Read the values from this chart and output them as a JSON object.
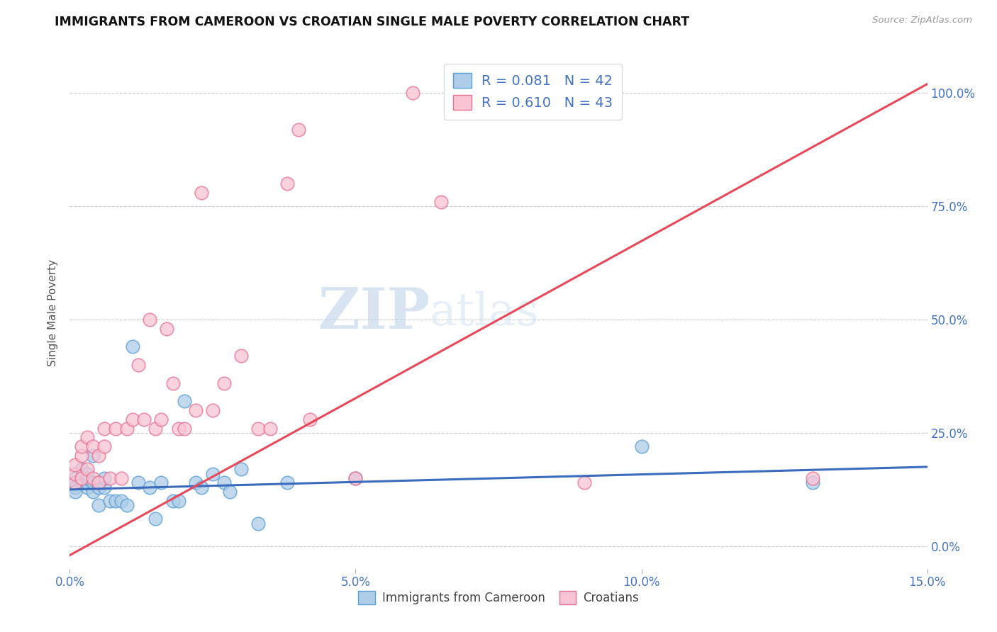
{
  "title": "IMMIGRANTS FROM CAMEROON VS CROATIAN SINGLE MALE POVERTY CORRELATION CHART",
  "source": "Source: ZipAtlas.com",
  "ylabel": "Single Male Poverty",
  "x_min": 0.0,
  "x_max": 0.15,
  "y_min": -0.05,
  "y_max": 1.08,
  "x_ticks": [
    0.0,
    0.05,
    0.1,
    0.15
  ],
  "x_tick_labels": [
    "0.0%",
    "5.0%",
    "10.0%",
    "15.0%"
  ],
  "y_ticks": [
    0.0,
    0.25,
    0.5,
    0.75,
    1.0
  ],
  "y_tick_labels": [
    "0.0%",
    "25.0%",
    "50.0%",
    "75.0%",
    "100.0%"
  ],
  "blue_color": "#92bde0",
  "pink_color": "#f4a8bf",
  "blue_face_color": "#aecde8",
  "pink_face_color": "#f9c4d4",
  "blue_edge_color": "#5b9fd4",
  "pink_edge_color": "#e87090",
  "blue_line_color": "#3a6bbc",
  "pink_line_color": "#e8485a",
  "watermark_zip": "ZIP",
  "watermark_atlas": "atlas",
  "blue_R": 0.081,
  "blue_N": 42,
  "pink_R": 0.61,
  "pink_N": 43,
  "blue_scatter_x": [
    0.001,
    0.001,
    0.001,
    0.001,
    0.002,
    0.002,
    0.002,
    0.003,
    0.003,
    0.003,
    0.003,
    0.004,
    0.004,
    0.004,
    0.005,
    0.005,
    0.005,
    0.006,
    0.006,
    0.007,
    0.008,
    0.009,
    0.01,
    0.011,
    0.012,
    0.014,
    0.015,
    0.016,
    0.018,
    0.019,
    0.02,
    0.022,
    0.023,
    0.025,
    0.027,
    0.028,
    0.03,
    0.033,
    0.038,
    0.05,
    0.1,
    0.13
  ],
  "blue_scatter_y": [
    0.14,
    0.15,
    0.13,
    0.12,
    0.14,
    0.15,
    0.17,
    0.13,
    0.14,
    0.15,
    0.16,
    0.12,
    0.14,
    0.2,
    0.13,
    0.14,
    0.09,
    0.13,
    0.15,
    0.1,
    0.1,
    0.1,
    0.09,
    0.44,
    0.14,
    0.13,
    0.06,
    0.14,
    0.1,
    0.1,
    0.32,
    0.14,
    0.13,
    0.16,
    0.14,
    0.12,
    0.17,
    0.05,
    0.14,
    0.15,
    0.22,
    0.14
  ],
  "pink_scatter_x": [
    0.001,
    0.001,
    0.001,
    0.002,
    0.002,
    0.002,
    0.003,
    0.003,
    0.004,
    0.004,
    0.005,
    0.005,
    0.006,
    0.006,
    0.007,
    0.008,
    0.009,
    0.01,
    0.011,
    0.012,
    0.013,
    0.014,
    0.015,
    0.016,
    0.017,
    0.018,
    0.019,
    0.02,
    0.022,
    0.023,
    0.025,
    0.027,
    0.03,
    0.033,
    0.035,
    0.038,
    0.04,
    0.042,
    0.05,
    0.06,
    0.065,
    0.09,
    0.13
  ],
  "pink_scatter_y": [
    0.14,
    0.16,
    0.18,
    0.15,
    0.2,
    0.22,
    0.17,
    0.24,
    0.15,
    0.22,
    0.14,
    0.2,
    0.22,
    0.26,
    0.15,
    0.26,
    0.15,
    0.26,
    0.28,
    0.4,
    0.28,
    0.5,
    0.26,
    0.28,
    0.48,
    0.36,
    0.26,
    0.26,
    0.3,
    0.78,
    0.3,
    0.36,
    0.42,
    0.26,
    0.26,
    0.8,
    0.92,
    0.28,
    0.15,
    1.0,
    0.76,
    0.14,
    0.15
  ],
  "blue_line_x": [
    0.0,
    0.15
  ],
  "blue_line_y": [
    0.125,
    0.175
  ],
  "pink_line_x": [
    0.0,
    0.15
  ],
  "pink_line_y": [
    -0.02,
    1.02
  ]
}
